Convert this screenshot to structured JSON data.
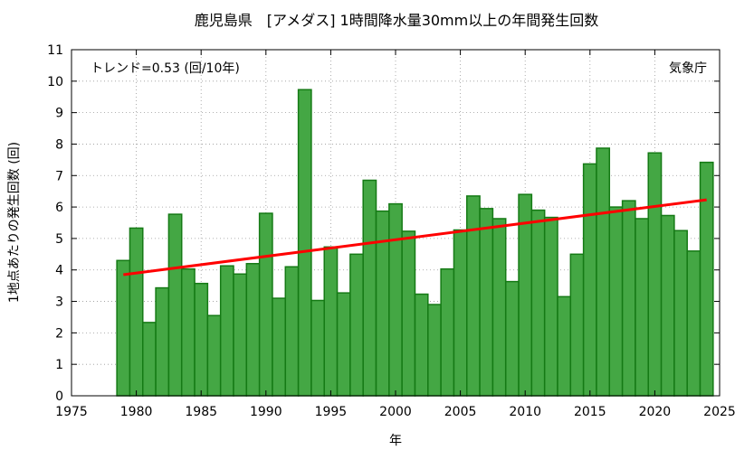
{
  "chart_data": {
    "type": "bar",
    "title": "鹿児島県　[アメダス] 1時間降水量30mm以上の年間発生回数",
    "xlabel": "年",
    "ylabel": "1地点あたりの発生回数 (回)",
    "trend_label": "トレンド=0.53 (回/10年)",
    "source_label": "気象庁",
    "xlim": [
      1975,
      2025
    ],
    "ylim": [
      0,
      11
    ],
    "x_ticks": [
      "1975",
      "1980",
      "1985",
      "1990",
      "1995",
      "2000",
      "2005",
      "2010",
      "2015",
      "2020",
      "2025"
    ],
    "y_ticks": [
      "0",
      "1",
      "2",
      "3",
      "4",
      "5",
      "6",
      "7",
      "8",
      "9",
      "10",
      "11"
    ],
    "grid": true,
    "colors": {
      "bar_fill": "#44a744",
      "bar_stroke": "#157a15",
      "trend": "#ff0000",
      "grid": "#999999"
    },
    "years": [
      1979,
      1980,
      1981,
      1982,
      1983,
      1984,
      1985,
      1986,
      1987,
      1988,
      1989,
      1990,
      1991,
      1992,
      1993,
      1994,
      1995,
      1996,
      1997,
      1998,
      1999,
      2000,
      2001,
      2002,
      2003,
      2004,
      2005,
      2006,
      2007,
      2008,
      2009,
      2010,
      2011,
      2012,
      2013,
      2014,
      2015,
      2016,
      2017,
      2018,
      2019,
      2020,
      2021,
      2022,
      2023,
      2024
    ],
    "values": [
      4.3,
      5.33,
      2.33,
      3.43,
      5.77,
      4.03,
      3.57,
      2.55,
      4.13,
      3.87,
      4.2,
      5.8,
      3.1,
      4.1,
      9.73,
      3.03,
      4.73,
      3.27,
      4.5,
      6.85,
      5.87,
      6.1,
      5.23,
      3.23,
      2.9,
      4.03,
      5.27,
      6.35,
      5.95,
      5.63,
      3.63,
      6.4,
      5.9,
      5.67,
      3.15,
      4.5,
      7.37,
      7.87,
      6.0,
      6.2,
      5.63,
      7.72,
      5.73,
      5.25,
      4.6,
      7.42
    ],
    "trend": {
      "x": [
        1979,
        2024
      ],
      "y": [
        3.85,
        6.23
      ]
    }
  }
}
